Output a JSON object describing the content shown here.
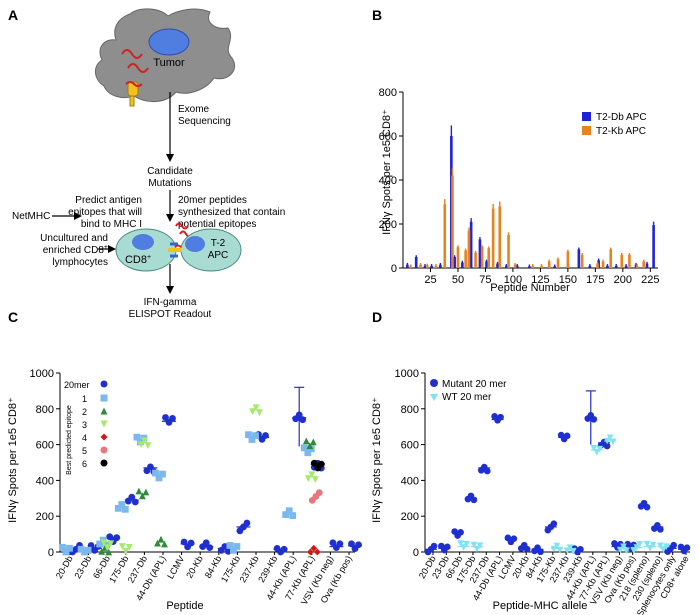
{
  "panels": {
    "A": {
      "letter": "A",
      "labels": {
        "tumor": "Tumor",
        "exome": "Exome",
        "sequencing": "Sequencing",
        "candidate": "Candidate",
        "mutations": "Mutations",
        "predict1": "Predict antigen",
        "predict2": "epitopes that will",
        "predict3": "bind to MHC I",
        "netmhc": "NetMHC",
        "syn1": "20mer peptides",
        "syn2": "synthesized that contain",
        "syn3": "potential epitopes",
        "unc1": "Uncultured and",
        "unc2": "enriched CD8",
        "unc2_sup": "+",
        "unc3": "lymphocytes",
        "cd8": "CD8",
        "cd8_sup": "+",
        "t2a": "T-2",
        "t2b": "APC",
        "ifn": "IFN-gamma",
        "elispot": "ELISPOT Readout"
      }
    },
    "B": {
      "letter": "B",
      "ylabel": "IFNγ Spots per 1e5 CD8⁺",
      "xlabel": "Peptide Number",
      "legend": [
        "T2-Db APC",
        "T2-Kb APC"
      ]
    },
    "C": {
      "letter": "C",
      "ylabel": "IFNγ Spots per 1e5 CD8⁺",
      "xlabel": "Peptide",
      "legend_title": "20mer",
      "legend_subtitle": "Best predicted epitope",
      "legend_items": [
        "1",
        "2",
        "3",
        "4",
        "5",
        "6"
      ]
    },
    "D": {
      "letter": "D",
      "ylabel": "IFNγ Spots per 1e5 CD8⁺",
      "xlabel": "Peptide-MHC allele",
      "legend": [
        "Mutant 20 mer",
        "WT 20 mer"
      ]
    }
  },
  "colors": {
    "db_blue": "#1f22d6",
    "kb_orange": "#e8821e",
    "mut_blue": "#1f2fd0",
    "wt_cyan": "#7fe3f2",
    "cell_teal": "#a8dcd3",
    "tumor_gray": "#8e8e8e",
    "nucleus_blue": "#4f7ee0",
    "ep1": "#7ab8ee",
    "ep2": "#2e8b3a",
    "ep3": "#a5ea6a",
    "ep4": "#d11818",
    "ep5": "#e8767a",
    "ep6": "#000000"
  },
  "chart_data": [
    {
      "panel": "B",
      "type": "bar",
      "xlabel": "Peptide Number",
      "ylabel": "IFNγ Spots per 1e5 CD8⁺",
      "xlim": [
        0,
        232
      ],
      "ylim": [
        0,
        800
      ],
      "xticks": [
        25,
        50,
        75,
        100,
        125,
        150,
        175,
        200,
        225
      ],
      "yticks": [
        0,
        200,
        400,
        600,
        800
      ],
      "series": [
        {
          "name": "T2-Db APC",
          "color": "#1f22d6",
          "x": [
            4,
            12,
            20,
            26,
            34,
            44,
            47,
            54,
            62,
            70,
            76,
            86,
            94,
            104,
            115,
            138,
            150,
            160,
            170,
            178,
            186,
            194,
            203,
            212,
            222,
            228
          ],
          "values": [
            15,
            50,
            10,
            10,
            15,
            600,
            50,
            25,
            210,
            130,
            30,
            20,
            10,
            10,
            8,
            8,
            20,
            85,
            10,
            35,
            10,
            10,
            10,
            15,
            20,
            195
          ]
        },
        {
          "name": "T2-Kb APC",
          "color": "#e8821e",
          "x": [
            7,
            16,
            22,
            30,
            38,
            45,
            50,
            57,
            60,
            66,
            72,
            78,
            82,
            88,
            96,
            102,
            118,
            126,
            133,
            141,
            150,
            163,
            177,
            182,
            189,
            199,
            206,
            213,
            219
          ],
          "values": [
            8,
            15,
            12,
            10,
            290,
            420,
            95,
            80,
            170,
            70,
            95,
            90,
            270,
            280,
            150,
            15,
            10,
            10,
            30,
            40,
            75,
            60,
            20,
            30,
            85,
            60,
            60,
            10,
            30
          ]
        }
      ]
    },
    {
      "panel": "C",
      "type": "scatter",
      "xlabel": "Peptide",
      "ylabel": "IFNγ Spots per 1e5 CD8⁺",
      "ylim": [
        0,
        1000
      ],
      "yticks": [
        0,
        200,
        400,
        600,
        800,
        1000
      ],
      "categories": [
        "20-Db",
        "23-Db",
        "66-Db",
        "175-Db",
        "237-Db",
        "44-Db (APL)",
        "LCMV",
        "20-Kb",
        "84-Kb",
        "175-Kb",
        "237-Kb",
        "239-Kb",
        "44-Kb (APL)",
        "77-Kb (APL)",
        "VSV (Kb neg)",
        "Ova (Kb pos)"
      ],
      "series": [
        {
          "name": "20mer",
          "values": [
            15,
            20,
            80,
            290,
            470,
            730,
            45,
            30,
            20,
            140,
            640,
            15,
            750,
            490,
            30,
            35
          ]
        },
        {
          "name": "1",
          "values": [
            10,
            10,
            50,
            260,
            620,
            430,
            null,
            null,
            null,
            20,
            650,
            null,
            225,
            560,
            null,
            null
          ]
        },
        {
          "name": "2",
          "values": [
            null,
            null,
            20,
            null,
            330,
            50,
            null,
            null,
            null,
            null,
            null,
            null,
            null,
            610,
            null,
            null
          ]
        },
        {
          "name": "3",
          "values": [
            null,
            null,
            30,
            20,
            600,
            null,
            null,
            null,
            null,
            null,
            800,
            null,
            null,
            410,
            null,
            null
          ]
        },
        {
          "name": "4",
          "values": [
            null,
            null,
            null,
            null,
            null,
            null,
            null,
            null,
            null,
            null,
            null,
            null,
            null,
            10,
            null,
            null
          ]
        },
        {
          "name": "5",
          "values": [
            null,
            null,
            null,
            null,
            null,
            null,
            null,
            null,
            null,
            null,
            null,
            null,
            null,
            310,
            null,
            null
          ]
        },
        {
          "name": "6",
          "values": [
            null,
            null,
            null,
            null,
            null,
            null,
            null,
            null,
            null,
            null,
            null,
            null,
            null,
            480,
            null,
            null
          ]
        }
      ]
    },
    {
      "panel": "D",
      "type": "scatter",
      "xlabel": "Peptide-MHC allele",
      "ylabel": "IFNγ Spots per 1e5 CD8⁺",
      "ylim": [
        0,
        1000
      ],
      "yticks": [
        0,
        200,
        400,
        600,
        800,
        1000
      ],
      "categories": [
        "20-Db",
        "23-Db",
        "66-Db",
        "175-Db",
        "237-Db",
        "44-Db (APL)",
        "LCMV",
        "20-Kb",
        "84-Kb",
        "175-Kb",
        "237-Kb",
        "239-Kb",
        "44-Kb (APL)",
        "77-Kb (APL)",
        "VSV (Kb neg)",
        "Ova (Kb pos)",
        "218 (spleno)",
        "230 (spleno)",
        "Splenocytes only",
        "CD8+ alone"
      ],
      "series": [
        {
          "name": "Mutant 20 mer",
          "values": [
            15,
            20,
            110,
            300,
            470,
            740,
            70,
            20,
            15,
            140,
            640,
            15,
            750,
            610,
            30,
            35,
            255,
            140,
            20,
            15
          ]
        },
        {
          "name": "WT 20 mer",
          "values": [
            null,
            null,
            30,
            30,
            null,
            null,
            null,
            null,
            null,
            20,
            20,
            null,
            570,
            620,
            20,
            25,
            30,
            30,
            null,
            null
          ]
        }
      ]
    }
  ]
}
